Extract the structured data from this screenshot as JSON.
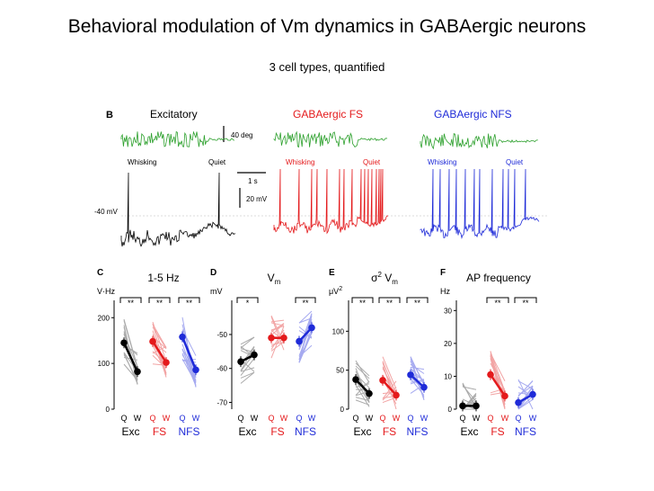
{
  "slide": {
    "title": "Behavioral modulation of Vm dynamics in GABAergic neurons",
    "subtitle": "3 cell types, quantified"
  },
  "colors": {
    "excitatory": "#000000",
    "fs": "#e41a1c",
    "nfs": "#1f2bd8",
    "whisk_exc": "#2ca02c"
  },
  "panel_b": {
    "label": "B",
    "cells": [
      {
        "name": "Excitatory",
        "color": "#000000",
        "whisking": "Whisking",
        "quiet": "Quiet"
      },
      {
        "name": "GABAergic FS",
        "color": "#e41a1c",
        "whisking": "Whisking",
        "quiet": "Quiet"
      },
      {
        "name": "GABAergic NFS",
        "color": "#1f2bd8",
        "whisking": "Whisking",
        "quiet": "Quiet"
      }
    ],
    "scale_deg": "40 deg",
    "scale_time": "1 s",
    "scale_mv": "20 mV",
    "baseline": "-40 mV"
  },
  "chart_data": [
    {
      "type": "line",
      "panel": "C",
      "title": "1-5 Hz",
      "ylabel": "V·Hz",
      "ylim": [
        0,
        230
      ],
      "ytick_labels": [
        "0",
        "100",
        "200"
      ],
      "yticks": [
        0,
        100,
        200
      ],
      "xtick_labels": [
        "Q",
        "W",
        "Q",
        "W",
        "Q",
        "W"
      ],
      "group_labels": [
        "Exc",
        "FS",
        "NFS"
      ],
      "significance": [
        "**",
        "**",
        "**"
      ],
      "series": [
        {
          "name": "Exc",
          "values": [
            145,
            82
          ]
        },
        {
          "name": "FS",
          "values": [
            148,
            102
          ]
        },
        {
          "name": "NFS",
          "values": [
            158,
            86
          ]
        }
      ]
    },
    {
      "type": "line",
      "panel": "D",
      "title": "V",
      "title_sub": "m",
      "ylabel": "mV",
      "ylim": [
        -72,
        -41
      ],
      "ytick_labels": [
        "-70",
        "-60",
        "-50"
      ],
      "yticks": [
        -70,
        -60,
        -50
      ],
      "xtick_labels": [
        "Q",
        "W",
        "Q",
        "W",
        "Q",
        "W"
      ],
      "group_labels": [
        "Exc",
        "FS",
        "NFS"
      ],
      "significance": [
        "*",
        "**"
      ],
      "series": [
        {
          "name": "Exc",
          "values": [
            -58,
            -56
          ]
        },
        {
          "name": "FS",
          "values": [
            -51,
            -51
          ]
        },
        {
          "name": "NFS",
          "values": [
            -52,
            -48
          ]
        }
      ]
    },
    {
      "type": "line",
      "panel": "E",
      "title": "σ",
      "title_sup": "2",
      "title_rest": "V",
      "title_sub": "m",
      "ylabel": "μV",
      "ylabel_sup": "2",
      "ylim": [
        0,
        135
      ],
      "ytick_labels": [
        "0",
        "50",
        "100"
      ],
      "yticks": [
        0,
        50,
        100
      ],
      "xtick_labels": [
        "Q",
        "W",
        "Q",
        "W",
        "Q",
        "W"
      ],
      "group_labels": [
        "Exc",
        "FS",
        "NFS"
      ],
      "significance": [
        "**",
        "**",
        "**"
      ],
      "series": [
        {
          "name": "Exc",
          "values": [
            38,
            20
          ]
        },
        {
          "name": "FS",
          "values": [
            37,
            18
          ]
        },
        {
          "name": "NFS",
          "values": [
            44,
            28
          ]
        }
      ]
    },
    {
      "type": "line",
      "panel": "F",
      "title": "AP frequency",
      "ylabel": "Hz",
      "ylim": [
        0,
        32
      ],
      "ytick_labels": [
        "0",
        "10",
        "20",
        "30"
      ],
      "yticks": [
        0,
        10,
        20,
        30
      ],
      "xtick_labels": [
        "Q",
        "W",
        "Q",
        "W",
        "Q",
        "W"
      ],
      "group_labels": [
        "Exc",
        "FS",
        "NFS"
      ],
      "significance": [
        "**",
        "**"
      ],
      "series": [
        {
          "name": "Exc",
          "values": [
            1,
            1
          ]
        },
        {
          "name": "FS",
          "values": [
            10.5,
            4
          ]
        },
        {
          "name": "NFS",
          "values": [
            2,
            4.5
          ]
        }
      ]
    }
  ]
}
